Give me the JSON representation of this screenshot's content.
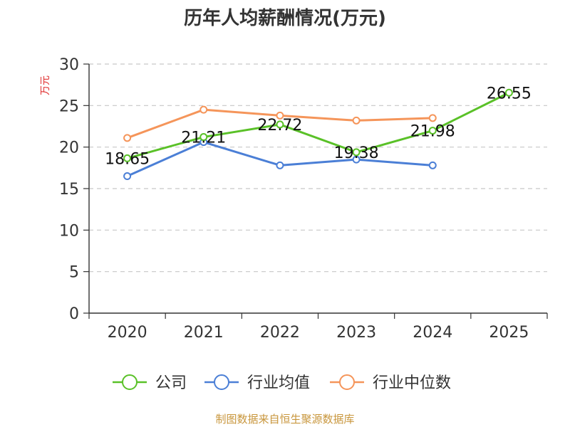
{
  "chart_data": {
    "type": "line",
    "title": "历年人均薪酬情况(万元)",
    "ylabel": "万元",
    "categories": [
      "2020",
      "2021",
      "2022",
      "2023",
      "2024",
      "2025"
    ],
    "ylim": [
      0,
      30
    ],
    "yticks": [
      0,
      5,
      10,
      15,
      20,
      25,
      30
    ],
    "grid": true,
    "legend_position": "bottom",
    "series": [
      {
        "name": "公司",
        "color": "#5ac128",
        "values": [
          18.65,
          21.21,
          22.72,
          19.38,
          21.98,
          26.55
        ],
        "labels": [
          "18.65",
          "21.21",
          "22.72",
          "19.38",
          "21.98",
          "26.55"
        ]
      },
      {
        "name": "行业均值",
        "color": "#4b7fd6",
        "values": [
          16.5,
          20.6,
          17.8,
          18.5,
          17.8,
          null
        ]
      },
      {
        "name": "行业中位数",
        "color": "#f5955a",
        "values": [
          21.1,
          24.5,
          23.8,
          23.2,
          23.5,
          null
        ]
      }
    ]
  },
  "source": "制图数据来自恒生聚源数据库"
}
